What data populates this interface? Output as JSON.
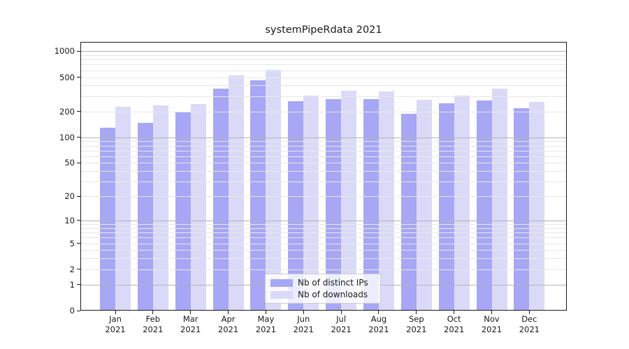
{
  "title": "systemPipeRdata 2021",
  "legend": {
    "items": [
      {
        "label": "Nb of distinct IPs",
        "color": "#a7a7f5"
      },
      {
        "label": "Nb of downloads",
        "color": "#dadaf8"
      }
    ]
  },
  "colors": {
    "grid_major": "#b3b3b3",
    "grid_minor": "#e7e7e7",
    "axis": "#1a1a1a",
    "background": "#ffffff"
  },
  "chart_data": {
    "type": "bar",
    "title": "systemPipeRdata 2021",
    "categories": [
      "Jan",
      "Feb",
      "Mar",
      "Apr",
      "May",
      "Jun",
      "Jul",
      "Aug",
      "Sep",
      "Oct",
      "Nov",
      "Dec"
    ],
    "x_year_label": "2021",
    "series": [
      {
        "name": "Nb of distinct IPs",
        "color": "#a7a7f5",
        "values": [
          130,
          148,
          199,
          370,
          460,
          263,
          277,
          278,
          187,
          248,
          267,
          219
        ]
      },
      {
        "name": "Nb of downloads",
        "color": "#dadaf8",
        "values": [
          225,
          237,
          245,
          520,
          605,
          304,
          348,
          342,
          275,
          304,
          370,
          260
        ]
      }
    ],
    "xlabel": "",
    "ylabel": "",
    "yscale": "log1p",
    "ylim": [
      0,
      1280
    ],
    "y_ticks": [
      0,
      1,
      2,
      5,
      10,
      20,
      50,
      100,
      200,
      500,
      1000
    ],
    "y_major_gridlines": [
      1,
      10,
      100,
      1000
    ],
    "grid": true,
    "grid_above_bars": true,
    "legend_position": "lower center"
  }
}
